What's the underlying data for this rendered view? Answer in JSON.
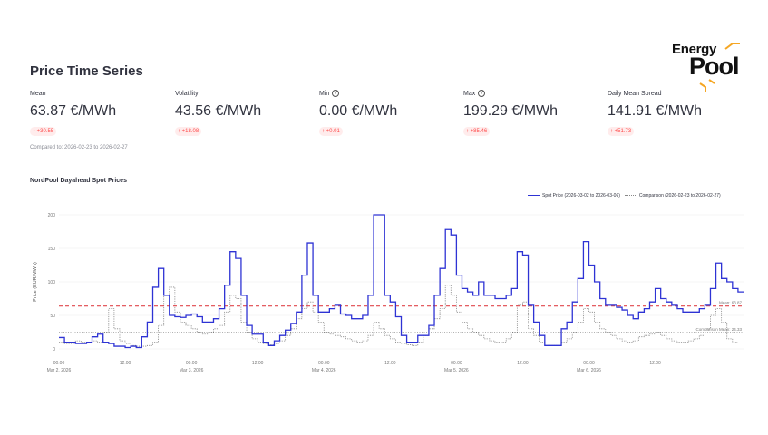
{
  "page": {
    "title": "Price Time Series"
  },
  "logo": {
    "line1": "Energy",
    "line2": "Pool",
    "accent_color": "#f5a623"
  },
  "metrics": [
    {
      "label": "Mean",
      "value": "63.87 €/MWh",
      "delta": "↑ +30.55",
      "help": false
    },
    {
      "label": "Volatility",
      "value": "43.56 €/MWh",
      "delta": "↑ +18.08",
      "help": false
    },
    {
      "label": "Min",
      "value": "0.00 €/MWh",
      "delta": "↑ +0.01",
      "help": true
    },
    {
      "label": "Max",
      "value": "199.29 €/MWh",
      "delta": "↑ +85.46",
      "help": true
    },
    {
      "label": "Daily Mean Spread",
      "value": "141.91 €/MWh",
      "delta": "↑ +51.73",
      "help": false
    }
  ],
  "compared_text": "Compared to: 2026-02-23 to 2026-02-27",
  "chart": {
    "title": "NordPool Dayahead Spot Prices"
  },
  "chart_data": {
    "type": "line",
    "title": "NordPool Dayahead Spot Prices",
    "ylabel": "Price (EUR/MWh)",
    "xlabel": "",
    "ylim": [
      0,
      210
    ],
    "yticks": [
      0,
      50,
      100,
      150,
      200
    ],
    "x_ticks": [
      {
        "h": 0,
        "label": "00:00",
        "date": "Mar 2, 2026"
      },
      {
        "h": 12,
        "label": "12:00",
        "date": ""
      },
      {
        "h": 24,
        "label": "00:00",
        "date": "Mar 3, 2026"
      },
      {
        "h": 36,
        "label": "12:00",
        "date": ""
      },
      {
        "h": 48,
        "label": "00:00",
        "date": "Mar 4, 2026"
      },
      {
        "h": 60,
        "label": "12:00",
        "date": ""
      },
      {
        "h": 72,
        "label": "00:00",
        "date": "Mar 5, 2026"
      },
      {
        "h": 84,
        "label": "12:00",
        "date": ""
      },
      {
        "h": 96,
        "label": "00:00",
        "date": "Mar 6, 2026"
      },
      {
        "h": 108,
        "label": "12:00",
        "date": ""
      }
    ],
    "legend_position": "top-right",
    "series": [
      {
        "name": "Spot Price (2026-03-02 to 2026-03-06)",
        "color": "#2e33d4",
        "style": "solid",
        "values": [
          17,
          10,
          10,
          8,
          8,
          10,
          18,
          22,
          10,
          8,
          4,
          4,
          2,
          4,
          2,
          18,
          40,
          92,
          120,
          80,
          50,
          48,
          47,
          50,
          52,
          48,
          40,
          40,
          45,
          60,
          95,
          145,
          135,
          80,
          35,
          22,
          22,
          10,
          5,
          12,
          20,
          28,
          38,
          55,
          110,
          158,
          80,
          55,
          55,
          60,
          65,
          52,
          50,
          45,
          45,
          50,
          80,
          200,
          200,
          80,
          70,
          48,
          20,
          10,
          10,
          20,
          20,
          35,
          80,
          120,
          178,
          170,
          110,
          90,
          85,
          80,
          100,
          80,
          80,
          75,
          75,
          80,
          90,
          145,
          140,
          65,
          40,
          20,
          5,
          5,
          5,
          30,
          40,
          70,
          105,
          160,
          125,
          100,
          75,
          65,
          65,
          62,
          58,
          50,
          45,
          55,
          60,
          70,
          90,
          75,
          70,
          65,
          60,
          55,
          55,
          55,
          60,
          65,
          90,
          128,
          105,
          100,
          90,
          85
        ]
      },
      {
        "name": "Comparison (2026-02-23 to 2026-02-27)",
        "color": "#888888",
        "style": "dotted",
        "values": [
          10,
          8,
          8,
          12,
          10,
          10,
          12,
          10,
          25,
          60,
          30,
          12,
          8,
          5,
          4,
          4,
          5,
          10,
          35,
          80,
          92,
          55,
          40,
          35,
          30,
          25,
          22,
          25,
          30,
          35,
          55,
          80,
          75,
          40,
          25,
          15,
          10,
          8,
          6,
          8,
          12,
          20,
          30,
          45,
          60,
          70,
          55,
          40,
          25,
          22,
          20,
          18,
          15,
          12,
          10,
          12,
          20,
          40,
          30,
          20,
          15,
          10,
          8,
          6,
          5,
          10,
          20,
          30,
          45,
          60,
          95,
          80,
          55,
          40,
          30,
          25,
          20,
          15,
          12,
          10,
          10,
          15,
          25,
          65,
          70,
          30,
          20,
          10,
          5,
          5,
          5,
          10,
          15,
          25,
          40,
          60,
          55,
          40,
          30,
          25,
          20,
          15,
          12,
          10,
          12,
          18,
          20,
          22,
          25,
          20,
          15,
          12,
          10,
          10,
          12,
          15,
          20,
          30,
          50,
          60,
          40,
          15,
          10
        ]
      }
    ],
    "reference_lines": [
      {
        "label": "Mean: 63.87",
        "value": 63.87,
        "color": "#e0474c",
        "style": "dashed"
      },
      {
        "label": "Comparison Mean: 24.33",
        "value": 24.33,
        "color": "#333333",
        "style": "dotted"
      }
    ]
  }
}
